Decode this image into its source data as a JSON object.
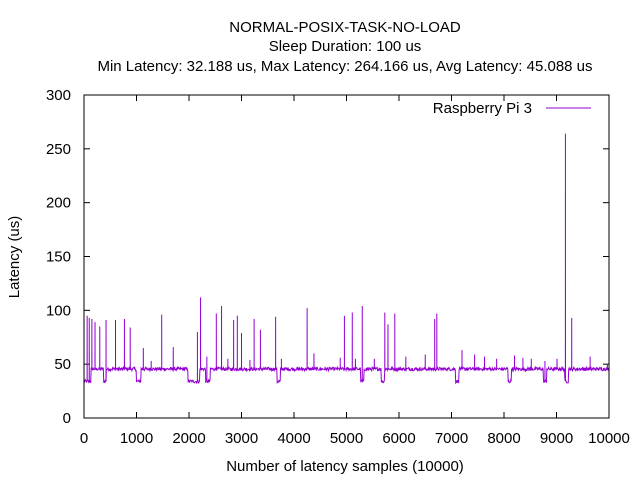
{
  "chart_data": {
    "type": "line",
    "title_lines": [
      "NORMAL-POSIX-TASK-NO-LOAD",
      "Sleep Duration: 100 us",
      "Min Latency: 32.188 us, Max Latency: 264.166 us, Avg Latency: 45.088 us"
    ],
    "xlabel": "Number of latency samples (10000)",
    "ylabel": "Latency (us)",
    "xlim": [
      0,
      10000
    ],
    "ylim": [
      0,
      300
    ],
    "x_ticks": [
      0,
      1000,
      2000,
      3000,
      4000,
      5000,
      6000,
      7000,
      8000,
      9000,
      10000
    ],
    "y_ticks": [
      0,
      50,
      100,
      150,
      200,
      250,
      300
    ],
    "legend_position": "top-right",
    "series": [
      {
        "name": "Raspberry Pi 3",
        "color": "#9400d3",
        "baseline": 45.5,
        "dip_level": 34,
        "dips": [
          [
            0,
            130
          ],
          [
            370,
            420
          ],
          [
            1000,
            1080
          ],
          [
            1980,
            2200
          ],
          [
            2320,
            2400
          ],
          [
            3680,
            3740
          ],
          [
            5270,
            5330
          ],
          [
            5660,
            5720
          ],
          [
            7080,
            7140
          ],
          [
            8080,
            8140
          ],
          [
            8750,
            8810
          ],
          [
            9160,
            9230
          ]
        ],
        "spikes": [
          [
            60,
            95
          ],
          [
            100,
            93
          ],
          [
            150,
            92
          ],
          [
            210,
            89
          ],
          [
            300,
            85
          ],
          [
            420,
            91
          ],
          [
            600,
            91
          ],
          [
            770,
            92
          ],
          [
            880,
            84
          ],
          [
            1130,
            65
          ],
          [
            1280,
            53
          ],
          [
            1480,
            96
          ],
          [
            1700,
            66
          ],
          [
            2160,
            80
          ],
          [
            2220,
            112
          ],
          [
            2340,
            57
          ],
          [
            2520,
            97
          ],
          [
            2620,
            104
          ],
          [
            2740,
            55
          ],
          [
            2850,
            91
          ],
          [
            2920,
            95
          ],
          [
            3000,
            79
          ],
          [
            3160,
            54
          ],
          [
            3240,
            92
          ],
          [
            3360,
            82
          ],
          [
            3650,
            94
          ],
          [
            3760,
            55
          ],
          [
            4250,
            102
          ],
          [
            4380,
            60
          ],
          [
            4880,
            56
          ],
          [
            4960,
            95
          ],
          [
            5110,
            98
          ],
          [
            5170,
            55
          ],
          [
            5300,
            104
          ],
          [
            5530,
            55
          ],
          [
            5730,
            98
          ],
          [
            5790,
            87
          ],
          [
            5920,
            97
          ],
          [
            6130,
            57
          ],
          [
            6500,
            59
          ],
          [
            6680,
            92
          ],
          [
            6720,
            97
          ],
          [
            7200,
            63
          ],
          [
            7440,
            59
          ],
          [
            7630,
            57
          ],
          [
            7860,
            55
          ],
          [
            8200,
            58
          ],
          [
            8360,
            56
          ],
          [
            8520,
            55
          ],
          [
            8780,
            53
          ],
          [
            9010,
            55
          ],
          [
            9170,
            264.166
          ],
          [
            9290,
            93
          ],
          [
            9640,
            57
          ],
          [
            9970,
            50
          ]
        ]
      }
    ]
  }
}
